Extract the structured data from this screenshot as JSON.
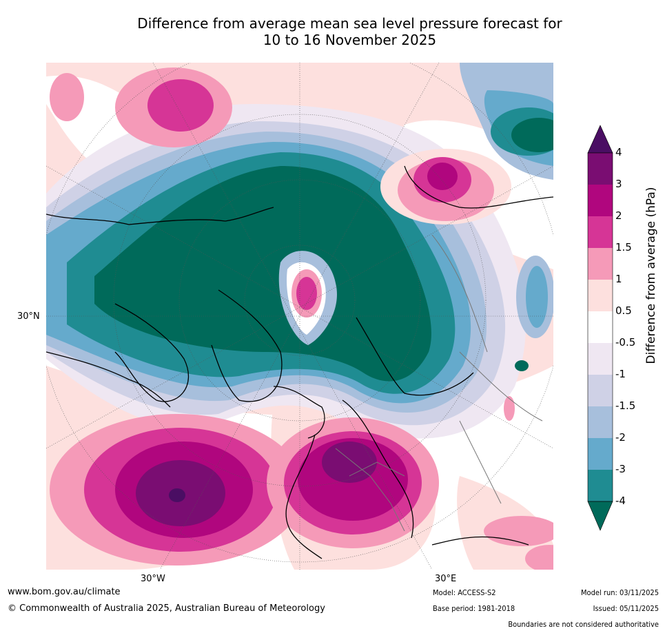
{
  "title_line1": "Difference from average mean sea level pressure forecast for",
  "title_line2": "10 to 16 November 2025",
  "axis": {
    "lat_label": "30°N",
    "lon_labels": [
      "30°W",
      "30°E"
    ]
  },
  "colorbar": {
    "label": "Difference from average (hPa)",
    "ticks": [
      "4",
      "3",
      "2",
      "1.5",
      "1",
      "0.5",
      "-0.5",
      "-1",
      "-1.5",
      "-2",
      "-3",
      "-4"
    ],
    "colors": [
      "#4a0e63",
      "#7a0d72",
      "#b0067e",
      "#d63596",
      "#f59ab8",
      "#fde0de",
      "#ffffff",
      "#efe7f2",
      "#cfd1e6",
      "#a7bfdc",
      "#65aacc",
      "#1f8c92",
      "#006a5a"
    ]
  },
  "footer": {
    "url": "www.bom.gov.au/climate",
    "copyright": "© Commonwealth of Australia 2025, Australian Bureau of Meteorology",
    "model": "Model: ACCESS-S2",
    "base_period": "Base period: 1981-2018",
    "model_run": "Model run: 03/11/2025",
    "issued": "Issued: 05/11/2025",
    "disclaimer": "Boundaries are not considered authoritative"
  }
}
